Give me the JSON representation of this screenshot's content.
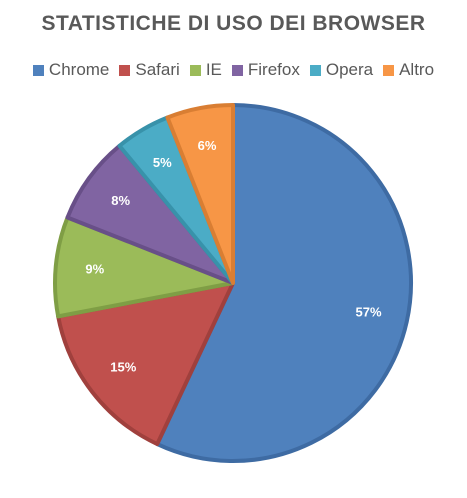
{
  "chart_data": {
    "type": "pie",
    "title": "STATISTICHE DI USO DEI BROWSER",
    "legend_position": "top",
    "slices": [
      {
        "label": "Chrome",
        "value": 57,
        "display": "57%",
        "color": "#4F81BD",
        "edge": "#3E6BA3"
      },
      {
        "label": "Safari",
        "value": 15,
        "display": "15%",
        "color": "#C0504D",
        "edge": "#A0403D"
      },
      {
        "label": "IE",
        "value": 9,
        "display": "9%",
        "color": "#9BBB59",
        "edge": "#7F9E45"
      },
      {
        "label": "Firefox",
        "value": 8,
        "display": "8%",
        "color": "#8064A2",
        "edge": "#684F88"
      },
      {
        "label": "Opera",
        "value": 5,
        "display": "5%",
        "color": "#4BACC6",
        "edge": "#3892AA"
      },
      {
        "label": "Altro",
        "value": 6,
        "display": "6%",
        "color": "#F79646",
        "edge": "#D97E33"
      }
    ]
  }
}
